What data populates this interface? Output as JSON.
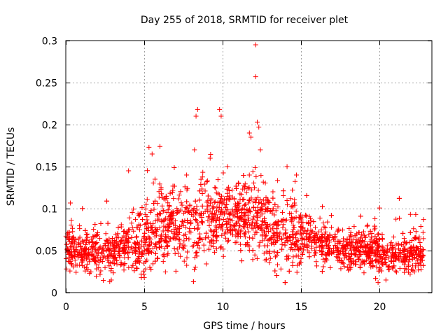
{
  "chart_data": {
    "type": "scatter",
    "title": "Day 255 of 2018, SRMTID for receiver plet",
    "xlabel": "GPS time / hours",
    "ylabel": "SRMTID / TECUs",
    "xlim": [
      0,
      23.33
    ],
    "ylim": [
      0,
      0.3
    ],
    "x_ticks": [
      0,
      5,
      10,
      15,
      20
    ],
    "x_tick_labels": [
      "0",
      "5",
      "10",
      "15",
      "20"
    ],
    "y_ticks": [
      0,
      0.05,
      0.1,
      0.15,
      0.2,
      0.25,
      0.3
    ],
    "y_tick_labels": [
      "0",
      "0.05",
      "0.1",
      "0.15",
      "0.2",
      "0.25",
      "0.3"
    ],
    "grid": true,
    "marker": "+",
    "color": "#ff0000",
    "x_range_of_data": [
      0,
      22.8
    ],
    "trend": {
      "x": [
        0,
        1,
        2,
        3,
        4,
        5,
        6,
        7,
        8,
        9,
        10,
        11,
        12,
        13,
        14,
        15,
        16,
        17,
        18,
        19,
        20,
        21,
        22,
        22.8
      ],
      "y": [
        0.055,
        0.05,
        0.048,
        0.048,
        0.06,
        0.06,
        0.08,
        0.08,
        0.075,
        0.085,
        0.09,
        0.09,
        0.09,
        0.08,
        0.075,
        0.07,
        0.058,
        0.055,
        0.05,
        0.05,
        0.048,
        0.045,
        0.045,
        0.045
      ]
    },
    "outliers": [
      {
        "x": 12.1,
        "y": 0.295
      },
      {
        "x": 12.1,
        "y": 0.257
      },
      {
        "x": 8.4,
        "y": 0.218
      },
      {
        "x": 8.3,
        "y": 0.21
      },
      {
        "x": 9.8,
        "y": 0.218
      },
      {
        "x": 9.9,
        "y": 0.21
      },
      {
        "x": 12.2,
        "y": 0.203
      },
      {
        "x": 12.3,
        "y": 0.197
      },
      {
        "x": 11.7,
        "y": 0.19
      },
      {
        "x": 11.8,
        "y": 0.185
      },
      {
        "x": 5.3,
        "y": 0.173
      },
      {
        "x": 6.0,
        "y": 0.174
      },
      {
        "x": 5.5,
        "y": 0.165
      },
      {
        "x": 4.0,
        "y": 0.145
      },
      {
        "x": 14.1,
        "y": 0.15
      },
      {
        "x": 14.7,
        "y": 0.14
      },
      {
        "x": 7.7,
        "y": 0.14
      },
      {
        "x": 8.2,
        "y": 0.17
      },
      {
        "x": 9.2,
        "y": 0.16
      },
      {
        "x": 10.3,
        "y": 0.15
      },
      {
        "x": 12.4,
        "y": 0.17
      },
      {
        "x": 13.2,
        "y": 0.12
      },
      {
        "x": 19.7,
        "y": 0.088
      },
      {
        "x": 22.3,
        "y": 0.093
      },
      {
        "x": 22.8,
        "y": 0.087
      },
      {
        "x": 19.9,
        "y": 0.012
      },
      {
        "x": 20.4,
        "y": 0.015
      },
      {
        "x": 2.8,
        "y": 0.013
      },
      {
        "x": 2.9,
        "y": 0.015
      },
      {
        "x": 5.0,
        "y": 0.018
      },
      {
        "x": 4.8,
        "y": 0.022
      }
    ]
  }
}
